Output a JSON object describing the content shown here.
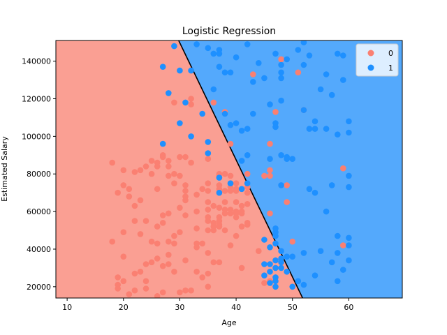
{
  "chart_data": {
    "type": "scatter",
    "title": "Logistic Regression",
    "xlabel": "Age",
    "ylabel": "Estimated Salary",
    "xlim": [
      8,
      69.5
    ],
    "ylim": [
      14000,
      151000
    ],
    "xticks": [
      10,
      20,
      30,
      40,
      50,
      60
    ],
    "yticks": [
      20000,
      40000,
      60000,
      80000,
      100000,
      120000,
      140000
    ],
    "ytick_labels": [
      "20000",
      "40000",
      "60000",
      "80000",
      "100000",
      "120000",
      "140000"
    ],
    "legend_position": "top-right",
    "grid": false,
    "decision_boundary": {
      "description_points": [
        [
          29.8,
          151000
        ],
        [
          51.8,
          14000
        ]
      ],
      "region_colors": {
        "0": "#fa9f93",
        "1": "#54a9fc"
      },
      "boundary_color": "#000000"
    },
    "series": [
      {
        "name": "0",
        "color": "#fa8072",
        "points": [
          [
            18,
            86000
          ],
          [
            18,
            44000
          ],
          [
            19,
            25000
          ],
          [
            19,
            19000
          ],
          [
            19,
            21000
          ],
          [
            19,
            70000
          ],
          [
            20,
            82000
          ],
          [
            20,
            74000
          ],
          [
            20,
            49000
          ],
          [
            20,
            36000
          ],
          [
            20,
            23000
          ],
          [
            21,
            72000
          ],
          [
            21,
            68000
          ],
          [
            21,
            16000
          ],
          [
            22,
            18000
          ],
          [
            22,
            27000
          ],
          [
            22,
            55000
          ],
          [
            22,
            63000
          ],
          [
            22,
            81000
          ],
          [
            23,
            28000
          ],
          [
            23,
            48000
          ],
          [
            23,
            66000
          ],
          [
            23,
            82000
          ],
          [
            24,
            19000
          ],
          [
            24,
            23000
          ],
          [
            24,
            32000
          ],
          [
            24,
            55000
          ],
          [
            24,
            84000
          ],
          [
            25,
            33000
          ],
          [
            25,
            87000
          ],
          [
            25,
            80000
          ],
          [
            25,
            44000
          ],
          [
            26,
            15000
          ],
          [
            26,
            35000
          ],
          [
            26,
            43000
          ],
          [
            26,
            52000
          ],
          [
            26,
            72000
          ],
          [
            26,
            84000
          ],
          [
            26,
            86000
          ],
          [
            27,
            17000
          ],
          [
            27,
            31000
          ],
          [
            27,
            54000
          ],
          [
            27,
            58000
          ],
          [
            27,
            89000
          ],
          [
            27,
            90000
          ],
          [
            28,
            32000
          ],
          [
            28,
            37000
          ],
          [
            28,
            44000
          ],
          [
            28,
            59000
          ],
          [
            28,
            79000
          ],
          [
            28,
            84000
          ],
          [
            28,
            87000
          ],
          [
            29,
            28000
          ],
          [
            29,
            43000
          ],
          [
            29,
            47000
          ],
          [
            29,
            75000
          ],
          [
            29,
            80000
          ],
          [
            29,
            118000
          ],
          [
            30,
            17000
          ],
          [
            30,
            49000
          ],
          [
            30,
            62000
          ],
          [
            30,
            89000
          ],
          [
            30,
            79000
          ],
          [
            31,
            18000
          ],
          [
            31,
            34000
          ],
          [
            31,
            58000
          ],
          [
            31,
            66000
          ],
          [
            31,
            68000
          ],
          [
            31,
            71000
          ],
          [
            31,
            74000
          ],
          [
            31,
            89000
          ],
          [
            32,
            18000
          ],
          [
            32,
            86000
          ],
          [
            32,
            117000
          ],
          [
            32,
            120000
          ],
          [
            33,
            28000
          ],
          [
            33,
            41000
          ],
          [
            33,
            43000
          ],
          [
            33,
            51000
          ],
          [
            33,
            60000
          ],
          [
            33,
            69000
          ],
          [
            34,
            25000
          ],
          [
            34,
            43000
          ],
          [
            34,
            72000
          ],
          [
            35,
            20000
          ],
          [
            35,
            27000
          ],
          [
            35,
            38000
          ],
          [
            35,
            50000
          ],
          [
            35,
            55000
          ],
          [
            35,
            57000
          ],
          [
            35,
            61000
          ],
          [
            35,
            65000
          ],
          [
            35,
            71000
          ],
          [
            35,
            75000
          ],
          [
            35,
            88000
          ],
          [
            36,
            33000
          ],
          [
            36,
            50000
          ],
          [
            36,
            52000
          ],
          [
            36,
            54000
          ],
          [
            36,
            63000
          ],
          [
            36,
            118000
          ],
          [
            37,
            33000
          ],
          [
            37,
            52000
          ],
          [
            37,
            53000
          ],
          [
            37,
            55000
          ],
          [
            37,
            57000
          ],
          [
            37,
            62000
          ],
          [
            37,
            72000
          ],
          [
            37,
            74000
          ],
          [
            37,
            79000
          ],
          [
            37,
            80000
          ],
          [
            38,
            50000
          ],
          [
            38,
            59000
          ],
          [
            38,
            61000
          ],
          [
            38,
            65000
          ],
          [
            38,
            71000
          ],
          [
            38,
            80000
          ],
          [
            38,
            113000
          ],
          [
            39,
            42000
          ],
          [
            39,
            59000
          ],
          [
            39,
            61000
          ],
          [
            39,
            71000
          ],
          [
            39,
            73000
          ],
          [
            39,
            75000
          ],
          [
            39,
            79000
          ],
          [
            39,
            96000
          ],
          [
            40,
            47000
          ],
          [
            40,
            57000
          ],
          [
            40,
            59000
          ],
          [
            40,
            60000
          ],
          [
            40,
            65000
          ],
          [
            40,
            71000
          ],
          [
            40,
            72000
          ],
          [
            40,
            75000
          ],
          [
            41,
            30000
          ],
          [
            41,
            52000
          ],
          [
            41,
            59000
          ],
          [
            41,
            60000
          ],
          [
            41,
            63000
          ],
          [
            41,
            72000
          ],
          [
            42,
            53000
          ],
          [
            42,
            54000
          ],
          [
            42,
            64000
          ],
          [
            42,
            70000
          ],
          [
            42,
            73000
          ],
          [
            42,
            80000
          ],
          [
            43,
            133000
          ],
          [
            44,
            39000
          ],
          [
            45,
            79000
          ],
          [
            45,
            22000
          ],
          [
            46,
            23000
          ],
          [
            46,
            59000
          ],
          [
            46,
            79000
          ],
          [
            46,
            82000
          ],
          [
            46,
            96000
          ],
          [
            47,
            113000
          ],
          [
            48,
            141000
          ],
          [
            49,
            65000
          ],
          [
            49,
            74000
          ],
          [
            50,
            44000
          ],
          [
            51,
            134000
          ],
          [
            52,
            114000
          ],
          [
            59,
            83000
          ],
          [
            59,
            42000
          ]
        ]
      },
      {
        "name": "1",
        "color": "#1e90ff",
        "points": [
          [
            27,
            96000
          ],
          [
            27,
            137000
          ],
          [
            28,
            123000
          ],
          [
            29,
            148000
          ],
          [
            30,
            107000
          ],
          [
            30,
            135000
          ],
          [
            31,
            118000
          ],
          [
            32,
            100000
          ],
          [
            32,
            135000
          ],
          [
            33,
            149000
          ],
          [
            34,
            112000
          ],
          [
            35,
            91000
          ],
          [
            35,
            97000
          ],
          [
            35,
            147000
          ],
          [
            36,
            125000
          ],
          [
            36,
            144000
          ],
          [
            37,
            70000
          ],
          [
            37,
            78000
          ],
          [
            37,
            137000
          ],
          [
            37,
            144000
          ],
          [
            37,
            146000
          ],
          [
            38,
            112000
          ],
          [
            38,
            134000
          ],
          [
            39,
            75000
          ],
          [
            39,
            106000
          ],
          [
            39,
            134000
          ],
          [
            40,
            107000
          ],
          [
            40,
            142000
          ],
          [
            41,
            72000
          ],
          [
            41,
            87000
          ],
          [
            41,
            103000
          ],
          [
            42,
            75000
          ],
          [
            42,
            90000
          ],
          [
            42,
            104000
          ],
          [
            42,
            149000
          ],
          [
            43,
            112000
          ],
          [
            43,
            129000
          ],
          [
            44,
            139000
          ],
          [
            45,
            26000
          ],
          [
            45,
            32000
          ],
          [
            45,
            45000
          ],
          [
            45,
            131000
          ],
          [
            46,
            22000
          ],
          [
            46,
            28000
          ],
          [
            46,
            32000
          ],
          [
            46,
            41000
          ],
          [
            46,
            88000
          ],
          [
            46,
            117000
          ],
          [
            47,
            20000
          ],
          [
            47,
            23000
          ],
          [
            47,
            25000
          ],
          [
            47,
            30000
          ],
          [
            47,
            34000
          ],
          [
            47,
            43000
          ],
          [
            47,
            47000
          ],
          [
            47,
            49000
          ],
          [
            47,
            51000
          ],
          [
            47,
            105000
          ],
          [
            47,
            107000
          ],
          [
            47,
            144000
          ],
          [
            48,
            30000
          ],
          [
            48,
            33000
          ],
          [
            48,
            35000
          ],
          [
            48,
            39000
          ],
          [
            48,
            74000
          ],
          [
            48,
            90000
          ],
          [
            48,
            119000
          ],
          [
            48,
            131000
          ],
          [
            48,
            134000
          ],
          [
            48,
            138000
          ],
          [
            49,
            28000
          ],
          [
            49,
            36000
          ],
          [
            49,
            88000
          ],
          [
            49,
            89000
          ],
          [
            49,
            141000
          ],
          [
            50,
            20000
          ],
          [
            50,
            36000
          ],
          [
            50,
            88000
          ],
          [
            51,
            23000
          ],
          [
            51,
            146000
          ],
          [
            52,
            21000
          ],
          [
            52,
            38000
          ],
          [
            52,
            114000
          ],
          [
            52,
            138000
          ],
          [
            52,
            150000
          ],
          [
            53,
            72000
          ],
          [
            53,
            104000
          ],
          [
            53,
            143000
          ],
          [
            54,
            26000
          ],
          [
            54,
            70000
          ],
          [
            54,
            104000
          ],
          [
            54,
            108000
          ],
          [
            55,
            39000
          ],
          [
            55,
            125000
          ],
          [
            56,
            60000
          ],
          [
            56,
            104000
          ],
          [
            56,
            133000
          ],
          [
            57,
            33000
          ],
          [
            57,
            74000
          ],
          [
            57,
            122000
          ],
          [
            58,
            23000
          ],
          [
            58,
            38000
          ],
          [
            58,
            47000
          ],
          [
            58,
            101000
          ],
          [
            58,
            144000
          ],
          [
            59,
            29000
          ],
          [
            59,
            130000
          ],
          [
            59,
            143000
          ],
          [
            60,
            34000
          ],
          [
            60,
            42000
          ],
          [
            60,
            46000
          ],
          [
            60,
            73000
          ],
          [
            60,
            79000
          ],
          [
            60,
            102000
          ],
          [
            60,
            108000
          ]
        ]
      }
    ]
  }
}
